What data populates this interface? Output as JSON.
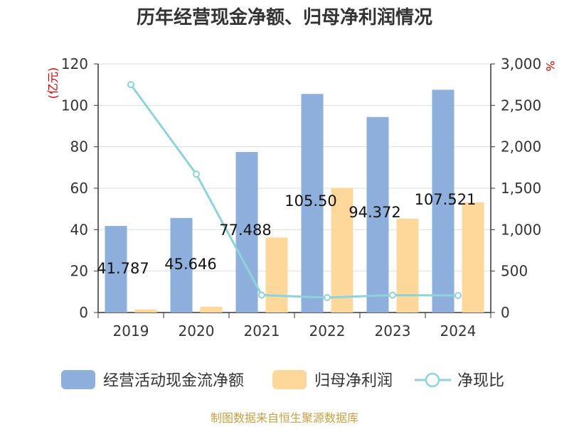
{
  "chart_data": {
    "type": "bar",
    "title": "历年经营现金净额、归母净利润情况",
    "categories": [
      "2019",
      "2020",
      "2021",
      "2022",
      "2023",
      "2024"
    ],
    "y_left": {
      "unit": "(亿元)",
      "ylim": [
        0,
        120
      ],
      "ticks": [
        "0",
        "20",
        "40",
        "60",
        "80",
        "100",
        "120"
      ],
      "tick_values": [
        0,
        20,
        40,
        60,
        80,
        100,
        120
      ]
    },
    "y_right": {
      "unit": "%",
      "ylim": [
        0,
        3000
      ],
      "ticks": [
        "0",
        "500",
        "1,000",
        "1,500",
        "2,000",
        "2,500",
        "3,000"
      ],
      "tick_values": [
        0,
        500,
        1000,
        1500,
        2000,
        2500,
        3000
      ]
    },
    "series": [
      {
        "name": "经营活动现金流净额",
        "type": "bar",
        "axis": "left",
        "color": "#8eaedc",
        "values": [
          41.787,
          45.646,
          77.488,
          105.5,
          94.372,
          107.521
        ],
        "labels": [
          "41.787",
          "45.646",
          "77.488",
          "105.50",
          "94.372",
          "107.521"
        ]
      },
      {
        "name": "归母净利润",
        "type": "bar",
        "axis": "left",
        "color": "#fdd89a",
        "values": [
          1.5,
          2.8,
          36.2,
          60.2,
          45.3,
          53.2
        ]
      },
      {
        "name": "净现比",
        "type": "line",
        "axis": "right",
        "color": "#8ed3da",
        "values": [
          2750,
          1670,
          210,
          180,
          210,
          205
        ]
      }
    ],
    "grid": true,
    "legend_position": "bottom"
  },
  "source": "制图数据来自恒生聚源数据库",
  "colors": {
    "axis_unit": "#cc0000",
    "source": "#c8a040",
    "grid": "#dddddd",
    "axis": "#333333",
    "text": "#333333"
  }
}
